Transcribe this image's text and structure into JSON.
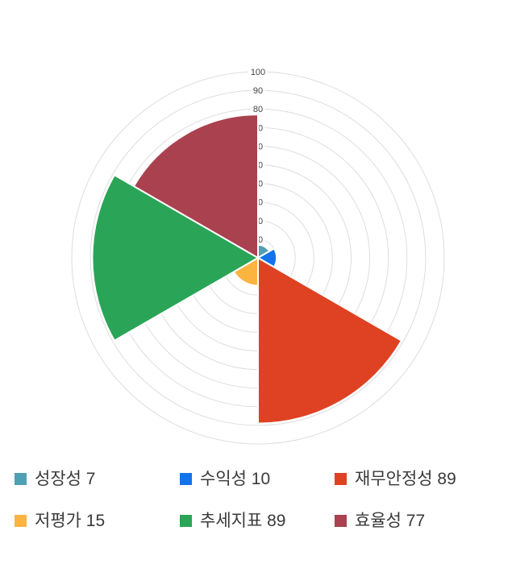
{
  "page": {
    "background": "#ffffff",
    "title": ""
  },
  "chart_data": {
    "type": "pie",
    "variant": "polar_area_rose",
    "title": "",
    "categories": [
      "성장성",
      "수익성",
      "재무안정성",
      "저평가",
      "추세지표",
      "효율성"
    ],
    "series": [
      {
        "name": "성장성",
        "value": 7,
        "color": "#4FA0B4"
      },
      {
        "name": "수익성",
        "value": 10,
        "color": "#1273EB"
      },
      {
        "name": "재무안정성",
        "value": 89,
        "color": "#DF4222"
      },
      {
        "name": "저평가",
        "value": 15,
        "color": "#FBB440"
      },
      {
        "name": "추세지표",
        "value": 89,
        "color": "#2AA557"
      },
      {
        "name": "효율성",
        "value": 77,
        "color": "#AA414F"
      }
    ],
    "angle_axis": {
      "start_deg": 0,
      "sector_deg": 60,
      "direction": "clockwise",
      "sector_border_color": "#ffffff"
    },
    "radial_axis": {
      "min": 0,
      "max": 100,
      "tick_step": 10,
      "tick_labels": [
        "10",
        "20",
        "30",
        "40",
        "50",
        "60",
        "70",
        "80",
        "90",
        "100"
      ],
      "tick_color": "#444444"
    },
    "grid": {
      "show": true,
      "color": "#dddddd",
      "circles": 10
    },
    "legend": {
      "position": "bottom",
      "rows": 2,
      "columns": 3,
      "items": [
        {
          "label": "성장성 7"
        },
        {
          "label": "수익성 10"
        },
        {
          "label": "재무안정성 89"
        },
        {
          "label": "저평가 15"
        },
        {
          "label": "추세지표 89"
        },
        {
          "label": "효율성 77"
        }
      ]
    }
  }
}
